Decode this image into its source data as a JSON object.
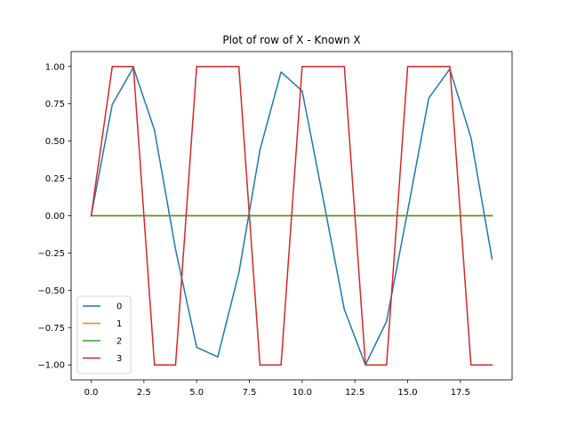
{
  "chart_data": {
    "type": "line",
    "title": "Plot of row of X - Known X",
    "xlabel": "",
    "ylabel": "",
    "xlim": [
      -0.95,
      19.95
    ],
    "ylim": [
      -1.1,
      1.1
    ],
    "x_ticks": [
      0.0,
      2.5,
      5.0,
      7.5,
      10.0,
      12.5,
      15.0,
      17.5
    ],
    "x_tick_labels": [
      "0.0",
      "2.5",
      "5.0",
      "7.5",
      "10.0",
      "12.5",
      "15.0",
      "17.5"
    ],
    "y_ticks": [
      -1.0,
      -0.75,
      -0.5,
      -0.25,
      0.0,
      0.25,
      0.5,
      0.75,
      1.0
    ],
    "y_tick_labels": [
      "−1.00",
      "−0.75",
      "−0.50",
      "−0.25",
      "0.00",
      "0.25",
      "0.50",
      "0.75",
      "1.00"
    ],
    "grid": false,
    "legend_position": "lower-left",
    "x": [
      0,
      1,
      2,
      3,
      4,
      5,
      6,
      7,
      8,
      9,
      10,
      11,
      12,
      13,
      14,
      15,
      16,
      17,
      18,
      19
    ],
    "series": [
      {
        "name": "0",
        "color": "#1f77b4",
        "values": [
          0.0,
          0.745,
          0.994,
          0.574,
          -0.225,
          -0.882,
          -0.946,
          -0.383,
          0.441,
          0.963,
          0.836,
          0.11,
          -0.629,
          -1.0,
          -0.708,
          0.031,
          0.788,
          0.983,
          0.523,
          -0.29
        ]
      },
      {
        "name": "1",
        "color": "#ff7f0e",
        "values": [
          0,
          0,
          0,
          0,
          0,
          0,
          0,
          0,
          0,
          0,
          0,
          0,
          0,
          0,
          0,
          0,
          0,
          0,
          0,
          0
        ]
      },
      {
        "name": "2",
        "color": "#2ca02c",
        "values": [
          0,
          0,
          0,
          0,
          0,
          0,
          0,
          0,
          0,
          0,
          0,
          0,
          0,
          0,
          0,
          0,
          0,
          0,
          0,
          0
        ]
      },
      {
        "name": "3",
        "color": "#d62728",
        "values": [
          0,
          1,
          1,
          -1,
          -1,
          1,
          1,
          1,
          -1,
          -1,
          1,
          1,
          1,
          -1,
          -1,
          1,
          1,
          1,
          -1,
          -1
        ]
      }
    ]
  }
}
